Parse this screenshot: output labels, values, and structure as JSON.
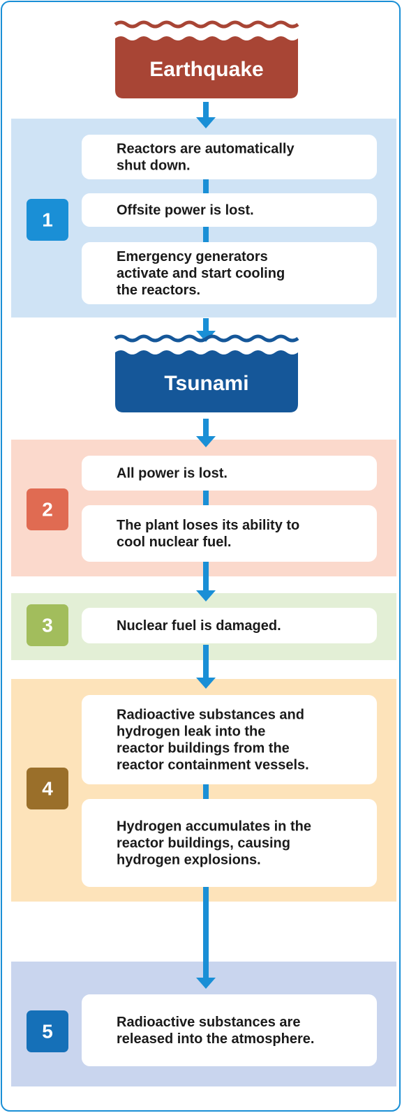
{
  "hazards": [
    "Earthquake",
    "Tsunami"
  ],
  "stages": [
    {
      "number": "1",
      "events": [
        {
          "lines": [
            "Reactors are automatically",
            "shut down."
          ]
        },
        {
          "lines": [
            "Offsite power is lost."
          ]
        },
        {
          "lines": [
            "Emergency generators",
            "activate and start cooling",
            "the reactors."
          ]
        }
      ]
    },
    {
      "number": "2",
      "events": [
        {
          "lines": [
            "All power is lost."
          ]
        },
        {
          "lines": [
            "The plant loses its ability to",
            "cool nuclear fuel."
          ]
        }
      ]
    },
    {
      "number": "3",
      "events": [
        {
          "lines": [
            "Nuclear fuel is damaged."
          ]
        }
      ]
    },
    {
      "number": "4",
      "events": [
        {
          "lines": [
            "Radioactive substances and",
            "hydrogen leak into the",
            "reactor buildings from the",
            "reactor containment vessels."
          ]
        },
        {
          "lines": [
            "Hydrogen accumulates in the",
            "reactor buildings, causing",
            "hydrogen explosions."
          ]
        }
      ]
    },
    {
      "number": "5",
      "events": [
        {
          "lines": [
            "Radioactive substances are",
            "released into the atmosphere."
          ]
        }
      ]
    }
  ]
}
